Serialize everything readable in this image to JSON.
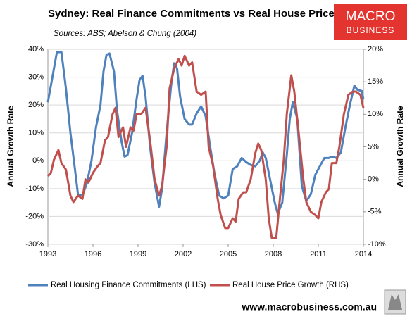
{
  "chart_data": {
    "type": "line",
    "title": "Sydney: Real Finance Commitments vs Real House Prices",
    "subtitle": "Sources: ABS; Abelson & Chung (2004)",
    "logo": [
      "MACRO",
      "BUSINESS"
    ],
    "footer": "www.macrobusiness.com.au",
    "ylabel": "Annual Growth Rate",
    "y2label": "Annual Growth Rate",
    "xlim": [
      1993,
      2014
    ],
    "xticks": [
      1993,
      1996,
      1999,
      2002,
      2005,
      2008,
      2011,
      2014
    ],
    "ylim": [
      -30,
      40
    ],
    "yticks": [
      {
        "value": -30,
        "label": "-30%"
      },
      {
        "value": -20,
        "label": "-20%"
      },
      {
        "value": -10,
        "label": "-10%"
      },
      {
        "value": 0,
        "label": "0%"
      },
      {
        "value": 10,
        "label": "10%"
      },
      {
        "value": 20,
        "label": "20%"
      },
      {
        "value": 30,
        "label": "30%"
      },
      {
        "value": 40,
        "label": "40%"
      }
    ],
    "y2lim": [
      -10,
      20
    ],
    "y2ticks": [
      {
        "value": -10,
        "label": "-10%"
      },
      {
        "value": -5,
        "label": "-5%"
      },
      {
        "value": 0,
        "label": "0%"
      },
      {
        "value": 5,
        "label": "5%"
      },
      {
        "value": 10,
        "label": "10%"
      },
      {
        "value": 15,
        "label": "15%"
      },
      {
        "value": 20,
        "label": "20%"
      }
    ],
    "grid": true,
    "legend": "bottom",
    "series": [
      {
        "name": "Real Housing Finance Commitments (LHS)",
        "color": "#4f81bd",
        "axis": "y",
        "x": [
          1993.0,
          1993.3,
          1993.6,
          1993.9,
          1994.2,
          1994.5,
          1994.8,
          1995.0,
          1995.3,
          1995.6,
          1995.9,
          1996.2,
          1996.5,
          1996.7,
          1996.9,
          1997.1,
          1997.4,
          1997.6,
          1997.9,
          1998.1,
          1998.3,
          1998.6,
          1998.9,
          1999.1,
          1999.3,
          1999.5,
          1999.8,
          2000.1,
          2000.4,
          2000.6,
          2000.9,
          2001.2,
          2001.4,
          2001.6,
          2001.8,
          2002.1,
          2002.4,
          2002.6,
          2002.9,
          2003.2,
          2003.5,
          2003.8,
          2004.1,
          2004.4,
          2004.7,
          2005.0,
          2005.3,
          2005.6,
          2005.9,
          2006.2,
          2006.5,
          2006.8,
          2007.1,
          2007.3,
          2007.5,
          2007.8,
          2008.1,
          2008.3,
          2008.6,
          2008.9,
          2009.1,
          2009.3,
          2009.6,
          2009.9,
          2010.2,
          2010.5,
          2010.8,
          2011.1,
          2011.4,
          2011.7,
          2011.9,
          2012.2,
          2012.5,
          2012.8,
          2013.1,
          2013.4,
          2013.6,
          2013.9,
          2014.0
        ],
        "values": [
          21,
          30,
          39,
          39,
          26,
          10,
          -3,
          -12,
          -12.5,
          -8,
          0,
          12,
          20,
          32,
          38,
          38.5,
          32,
          18,
          7,
          1.5,
          2,
          10,
          22,
          29,
          30.5,
          23,
          5,
          -8,
          -16.5,
          -10,
          10,
          27,
          35,
          33,
          23,
          15,
          13,
          13,
          17,
          19.5,
          16,
          5,
          -5,
          -12.5,
          -13.5,
          -12.5,
          -3,
          -2,
          1,
          -0.5,
          -1.5,
          -2,
          0,
          3,
          1,
          -7,
          -15,
          -19,
          -15,
          2,
          15,
          21,
          15,
          -9,
          -14.5,
          -12,
          -5,
          -2,
          1,
          1,
          1.5,
          1,
          3,
          12,
          20,
          27,
          25.5,
          25,
          22
        ]
      },
      {
        "name": "Real House Price Growth (RHS)",
        "color": "#c0504d",
        "axis": "y2",
        "x": [
          1993.0,
          1993.2,
          1993.4,
          1993.7,
          1993.9,
          1994.2,
          1994.5,
          1994.7,
          1995.0,
          1995.3,
          1995.5,
          1995.7,
          1996.0,
          1996.3,
          1996.5,
          1996.8,
          1997.0,
          1997.3,
          1997.5,
          1997.7,
          1998.0,
          1998.2,
          1998.5,
          1998.7,
          1998.9,
          1999.2,
          1999.5,
          1999.8,
          2000.1,
          2000.4,
          2000.6,
          2000.9,
          2001.1,
          2001.4,
          2001.7,
          2001.9,
          2002.1,
          2002.4,
          2002.6,
          2002.9,
          2003.2,
          2003.5,
          2003.7,
          2004.0,
          2004.3,
          2004.5,
          2004.8,
          2005.0,
          2005.3,
          2005.5,
          2005.7,
          2006.0,
          2006.2,
          2006.5,
          2006.8,
          2007.0,
          2007.2,
          2007.5,
          2007.7,
          2007.9,
          2008.2,
          2008.4,
          2008.7,
          2008.9,
          2009.2,
          2009.4,
          2009.7,
          2010.0,
          2010.2,
          2010.5,
          2010.8,
          2011.0,
          2011.2,
          2011.5,
          2011.7,
          2011.9,
          2012.2,
          2012.4,
          2012.7,
          2013.0,
          2013.3,
          2013.5,
          2013.8,
          2014.0
        ],
        "values": [
          0.5,
          1,
          3,
          4.5,
          2.5,
          1.5,
          -2.5,
          -3.5,
          -2.5,
          -3,
          0,
          -0.5,
          1,
          2,
          2.5,
          6,
          6.5,
          10,
          11,
          6.5,
          8,
          5,
          8,
          7.5,
          10,
          10,
          11,
          6,
          0,
          -2.5,
          -1,
          5,
          14,
          17,
          18.5,
          17.5,
          19,
          17.5,
          18,
          13.5,
          13,
          13.5,
          5,
          2,
          -3,
          -5.5,
          -7.5,
          -7.5,
          -6,
          -6.5,
          -3,
          -2,
          -2,
          0,
          4,
          5.5,
          4.5,
          0,
          -6,
          -9,
          -9,
          -4,
          3,
          10,
          16,
          13.5,
          7,
          0,
          -3.5,
          -5,
          -5.5,
          -6,
          -3.5,
          -2,
          -1.5,
          2.5,
          2.5,
          5,
          10,
          13,
          13.5,
          13.5,
          13,
          11
        ]
      }
    ]
  }
}
